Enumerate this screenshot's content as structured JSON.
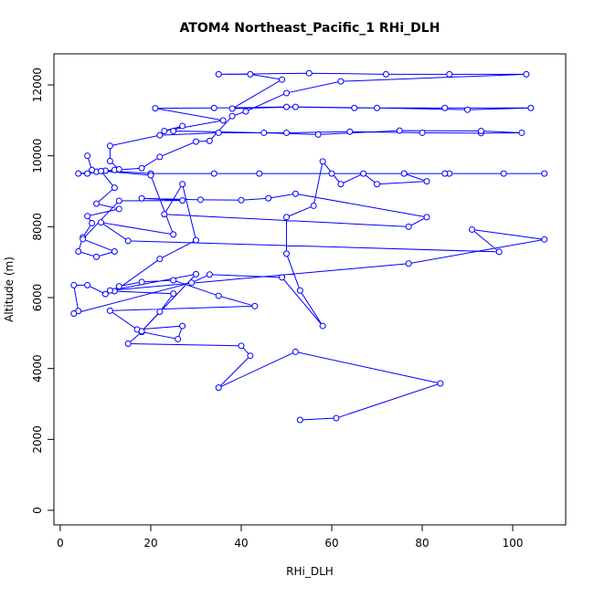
{
  "chart_data": {
    "type": "line",
    "title": "ATOM4 Northeast_Pacific_1 RHi_DLH",
    "xlabel": "RHi_DLH",
    "ylabel": "Altitude (m)",
    "x": [
      53,
      61,
      84,
      52,
      35,
      42,
      40,
      15,
      18,
      26,
      27,
      17,
      11,
      43,
      35,
      25,
      18,
      13,
      10,
      6,
      3,
      4,
      3,
      29,
      33,
      49,
      58,
      53,
      50,
      50,
      56,
      58,
      62,
      67,
      70,
      81,
      76,
      86,
      98,
      107,
      85,
      60,
      44,
      34,
      20,
      10,
      8,
      4,
      6,
      12,
      13,
      11,
      11,
      22,
      35,
      50,
      64,
      80,
      93,
      102,
      93,
      75,
      57,
      45,
      25,
      27,
      23,
      36,
      21,
      34,
      50,
      65,
      85,
      104,
      90,
      70,
      52,
      38,
      49,
      42,
      35,
      55,
      72,
      86,
      103,
      62,
      50,
      41,
      38,
      33,
      30,
      22,
      18,
      9,
      12,
      8,
      13,
      6,
      7,
      5,
      4,
      8,
      12,
      5,
      13,
      27,
      18,
      31,
      40,
      46,
      52,
      81,
      77,
      23,
      27,
      30,
      22,
      12,
      25,
      22,
      18,
      30,
      11,
      77,
      107,
      91,
      97,
      15,
      9,
      25,
      20,
      7,
      6
    ],
    "series": [
      {
        "color": "#0000ff",
        "values": [
          2550,
          2600,
          3580,
          4470,
          3460,
          4360,
          4640,
          4700,
          5030,
          4830,
          5200,
          5100,
          5630,
          5760,
          6050,
          6490,
          6440,
          6320,
          6100,
          6350,
          6350,
          5620,
          5550,
          6420,
          6650,
          6570,
          5200,
          6200,
          7240,
          8270,
          8590,
          9840,
          9200,
          9500,
          9200,
          9280,
          9500,
          9500,
          9500,
          9500,
          9500,
          9500,
          9500,
          9500,
          9500,
          9580,
          9550,
          9500,
          9500,
          9600,
          9620,
          9850,
          10280,
          10580,
          10650,
          10650,
          10680,
          10650,
          10640,
          10650,
          10700,
          10710,
          10600,
          10650,
          10700,
          10840,
          10700,
          11000,
          11340,
          11350,
          11380,
          11350,
          11350,
          11350,
          11300,
          11350,
          11380,
          11330,
          12150,
          12300,
          12300,
          12330,
          12300,
          12300,
          12300,
          12100,
          11770,
          11250,
          11120,
          10420,
          10400,
          9970,
          9650,
          9570,
          9100,
          8650,
          8500,
          8300,
          8100,
          7700,
          7300,
          7150,
          7300,
          7650,
          8730,
          8740,
          8800,
          8760,
          8750,
          8800,
          8930,
          8270,
          8000,
          8350,
          9200,
          7620,
          7090,
          6180,
          6110,
          5600,
          5050,
          6660,
          6200,
          6960,
          7640,
          7920,
          7290,
          7600,
          8120,
          7780,
          9450,
          9600,
          10000
        ]
      }
    ],
    "xlim": [
      -1.4,
      111.7
    ],
    "xticks": [
      0,
      20,
      40,
      60,
      80,
      100
    ],
    "ylim": [
      -412,
      12876
    ],
    "yticks": [
      0,
      2000,
      4000,
      6000,
      8000,
      10000,
      12000
    ]
  }
}
